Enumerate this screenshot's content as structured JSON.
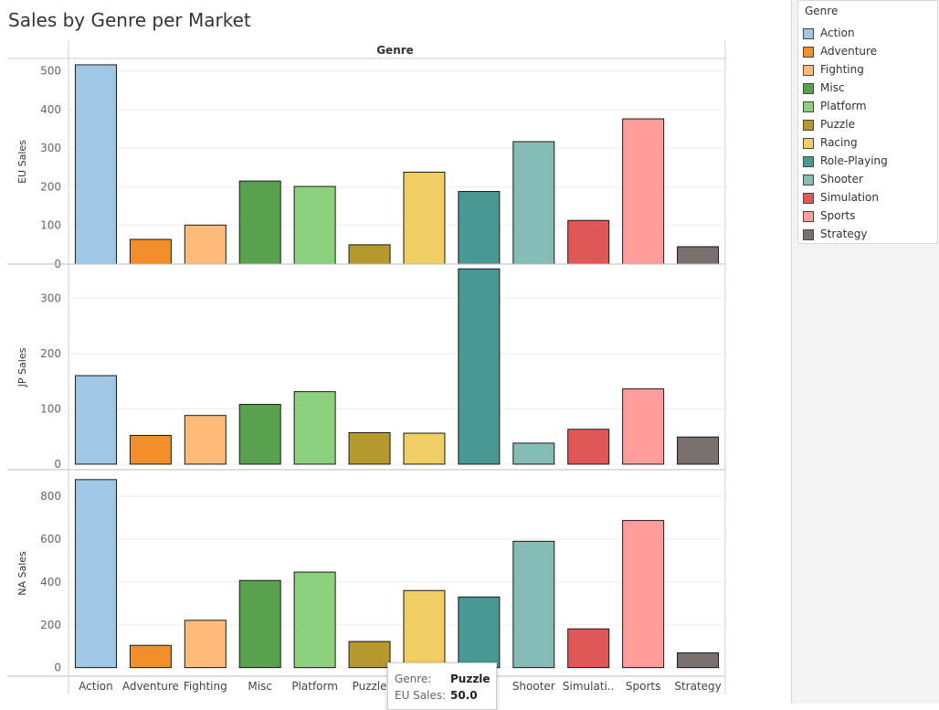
{
  "title": "Sales by Genre per Market",
  "legend": {
    "title": "Genre",
    "items": [
      {
        "label": "Action",
        "color": "#a0c8e6"
      },
      {
        "label": "Adventure",
        "color": "#f28e2b"
      },
      {
        "label": "Fighting",
        "color": "#ffbb78"
      },
      {
        "label": "Misc",
        "color": "#59a14f"
      },
      {
        "label": "Platform",
        "color": "#8cd17d"
      },
      {
        "label": "Puzzle",
        "color": "#b6992d"
      },
      {
        "label": "Racing",
        "color": "#f1ce63"
      },
      {
        "label": "Role-Playing",
        "color": "#499894"
      },
      {
        "label": "Shooter",
        "color": "#86bcb6"
      },
      {
        "label": "Simulation",
        "color": "#e15759"
      },
      {
        "label": "Sports",
        "color": "#ff9d9a"
      },
      {
        "label": "Strategy",
        "color": "#79706e"
      }
    ]
  },
  "tooltip": {
    "genre_key": "Genre:",
    "genre_value": "Puzzle",
    "sales_key": "EU Sales:",
    "sales_value": "50.0"
  },
  "chart_data": {
    "type": "bar",
    "column_header": "Genre",
    "categories": [
      "Action",
      "Adventure",
      "Fighting",
      "Misc",
      "Platform",
      "Puzzle",
      "Racing",
      "Role-Playing",
      "Shooter",
      "Simulation",
      "Sports",
      "Strategy"
    ],
    "category_tick_labels": [
      "Action",
      "Adventure",
      "Fighting",
      "Misc",
      "Platform",
      "Puzzle",
      "",
      "",
      "Shooter",
      "Simulati..",
      "Sports",
      "Strategy"
    ],
    "panels": [
      {
        "ylabel": "EU Sales",
        "ylim": [
          0,
          530
        ],
        "ticks": [
          0,
          100,
          200,
          300,
          400,
          500
        ],
        "values": [
          516,
          64,
          101,
          215,
          201,
          50,
          238,
          188,
          317,
          113,
          376,
          45
        ]
      },
      {
        "ylabel": "JP Sales",
        "ylim": [
          -10,
          360
        ],
        "ticks": [
          0,
          100,
          200,
          300
        ],
        "values": [
          160,
          52,
          88,
          108,
          131,
          57,
          56,
          353,
          38,
          63,
          136,
          49
        ]
      },
      {
        "ylabel": "NA Sales",
        "ylim": [
          -40,
          920
        ],
        "ticks": [
          0,
          200,
          400,
          600,
          800
        ],
        "values": [
          878,
          104,
          221,
          407,
          446,
          122,
          360,
          330,
          590,
          181,
          687,
          69
        ]
      }
    ]
  }
}
